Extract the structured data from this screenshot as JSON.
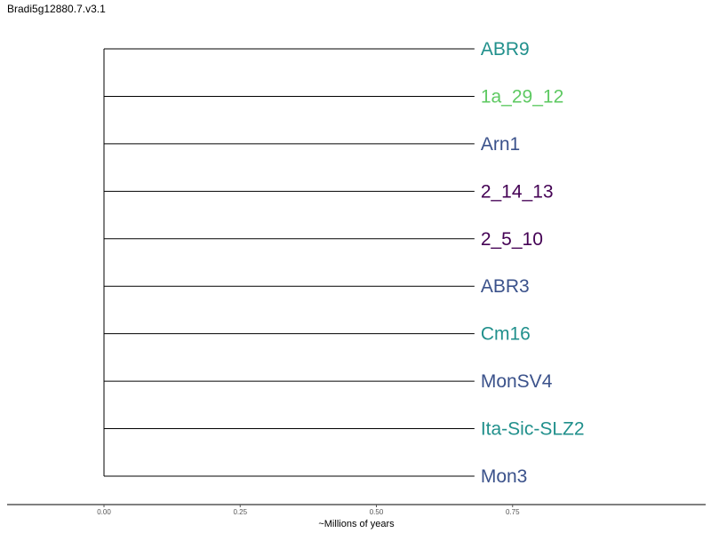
{
  "title": "Bradi5g12880.7.v3.1",
  "chart_data": {
    "type": "dendrogram",
    "title": "Bradi5g12880.7.v3.1",
    "xlabel": "~Millions of years",
    "ylabel": "",
    "xlim": [
      0.0,
      0.9
    ],
    "x_ticks": [
      0.0,
      0.25,
      0.5,
      0.75
    ],
    "x_tick_labels": [
      "0.00",
      "0.25",
      "0.50",
      "0.75"
    ],
    "grid": false,
    "root_x": 0.0,
    "leaves": [
      {
        "label": "ABR9",
        "x": 0.68,
        "color": "#21908c"
      },
      {
        "label": "1a_29_12",
        "x": 0.68,
        "color": "#5ec962"
      },
      {
        "label": "Arn1",
        "x": 0.68,
        "color": "#3b528b"
      },
      {
        "label": "2_14_13",
        "x": 0.68,
        "color": "#440154"
      },
      {
        "label": "2_5_10",
        "x": 0.68,
        "color": "#440154"
      },
      {
        "label": "ABR3",
        "x": 0.68,
        "color": "#3b528b"
      },
      {
        "label": "Cm16",
        "x": 0.68,
        "color": "#21908c"
      },
      {
        "label": "MonSV4",
        "x": 0.68,
        "color": "#3b528b"
      },
      {
        "label": "Ita-Sic-SLZ2",
        "x": 0.68,
        "color": "#21908c"
      },
      {
        "label": "Mon3",
        "x": 0.68,
        "color": "#3b528b"
      }
    ]
  }
}
